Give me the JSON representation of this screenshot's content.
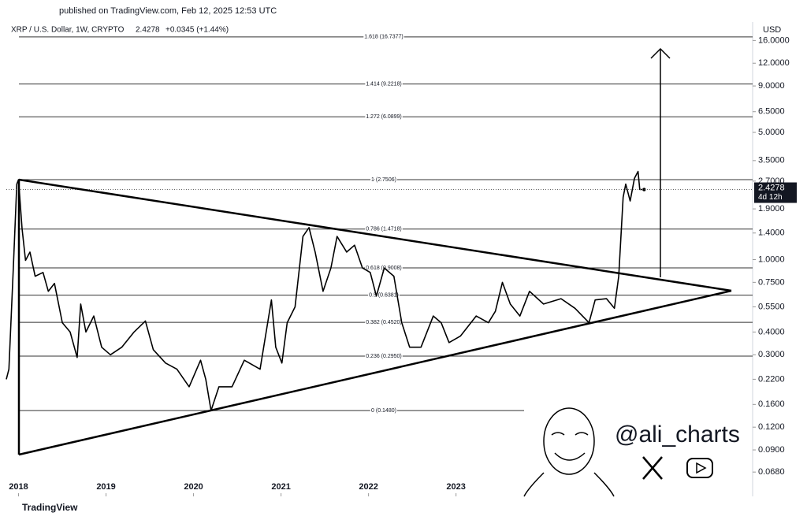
{
  "published": "published on TradingView.com, Feb 12, 2025 12:53 UTC",
  "footer": "TradingView",
  "watermark": "@ali_charts",
  "chart_data": {
    "type": "line",
    "symbol": "XRP / U.S. Dollar, 1W, CRYPTO",
    "last_price": "2.4278",
    "change": "+0.0345 (+1.44%)",
    "countdown": "4d 12h",
    "y_axis_label": "USD",
    "color": "#000000",
    "log_scale": true,
    "grid": false,
    "xlim": [
      2017.86,
      2026.39
    ],
    "xticks": [
      2018,
      2019,
      2020,
      2021,
      2022,
      2023
    ],
    "ylim": [
      0.05,
      20.2
    ],
    "yticks": [
      {
        "value": 0.068,
        "label": "0.0680"
      },
      {
        "value": 0.09,
        "label": "0.0900"
      },
      {
        "value": 0.12,
        "label": "0.1200"
      },
      {
        "value": 0.16,
        "label": "0.1600"
      },
      {
        "value": 0.22,
        "label": "0.2200"
      },
      {
        "value": 0.3,
        "label": "0.3000"
      },
      {
        "value": 0.4,
        "label": "0.4000"
      },
      {
        "value": 0.55,
        "label": "0.5500"
      },
      {
        "value": 0.75,
        "label": "0.7500"
      },
      {
        "value": 1,
        "label": "1.0000"
      },
      {
        "value": 1.4,
        "label": "1.4000"
      },
      {
        "value": 1.9,
        "label": "1.9000"
      },
      {
        "value": 2.7,
        "label": "2.7000"
      },
      {
        "value": 3.5,
        "label": "3.5000"
      },
      {
        "value": 5,
        "label": "5.0000"
      },
      {
        "value": 6.5,
        "label": "6.5000"
      },
      {
        "value": 9,
        "label": "9.0000"
      },
      {
        "value": 12,
        "label": "12.0000"
      },
      {
        "value": 16,
        "label": "16.0000"
      }
    ],
    "fib_levels": [
      {
        "label": "1.618 (16.7377)",
        "value": 16.7377
      },
      {
        "label": "1.414 (9.2218)",
        "value": 9.2218
      },
      {
        "label": "1.272 (6.0899)",
        "value": 6.0899
      },
      {
        "label": "1 (2.7506)",
        "value": 2.7506
      },
      {
        "label": "0.786 (1.4718)",
        "value": 1.4718
      },
      {
        "label": "0.618 (0.9008)",
        "value": 0.9008
      },
      {
        "label": "0.5 (0.6381)",
        "value": 0.6381
      },
      {
        "label": "0.382 (0.4520)",
        "value": 0.452
      },
      {
        "label": "0.236 (0.2950)",
        "value": 0.295
      },
      {
        "label": "0 (0.1480)",
        "value": 0.148
      }
    ],
    "x": [
      2017.86,
      2017.89,
      2017.94,
      2017.98,
      2018.0,
      2018.04,
      2018.08,
      2018.13,
      2018.19,
      2018.28,
      2018.34,
      2018.41,
      2018.5,
      2018.59,
      2018.67,
      2018.71,
      2018.77,
      2018.86,
      2018.95,
      2019.05,
      2019.18,
      2019.32,
      2019.45,
      2019.54,
      2019.68,
      2019.81,
      2019.95,
      2020.08,
      2020.14,
      2020.2,
      2020.29,
      2020.44,
      2020.58,
      2020.76,
      2020.89,
      2020.94,
      2021.01,
      2021.07,
      2021.16,
      2021.25,
      2021.32,
      2021.39,
      2021.48,
      2021.57,
      2021.64,
      2021.75,
      2021.84,
      2021.93,
      2022.02,
      2022.09,
      2022.18,
      2022.29,
      2022.38,
      2022.47,
      2022.6,
      2022.74,
      2022.83,
      2022.92,
      2023.05,
      2023.23,
      2023.37,
      2023.45,
      2023.53,
      2023.62,
      2023.73,
      2023.84,
      2024.0,
      2024.2,
      2024.36,
      2024.52,
      2024.59,
      2024.72,
      2024.81,
      2024.86,
      2024.91,
      2024.94,
      2024.99,
      2025.04,
      2025.08,
      2025.1,
      2025.15
    ],
    "values": [
      0.22,
      0.25,
      0.9,
      2.6,
      2.75,
      1.48,
      0.99,
      1.1,
      0.81,
      0.85,
      0.67,
      0.74,
      0.45,
      0.4,
      0.29,
      0.57,
      0.4,
      0.49,
      0.33,
      0.3,
      0.33,
      0.4,
      0.46,
      0.32,
      0.27,
      0.25,
      0.2,
      0.28,
      0.22,
      0.148,
      0.2,
      0.2,
      0.28,
      0.25,
      0.6,
      0.33,
      0.27,
      0.45,
      0.55,
      1.34,
      1.5,
      1.1,
      0.67,
      0.9,
      1.34,
      1.1,
      1.2,
      0.9,
      0.85,
      0.63,
      0.9,
      0.81,
      0.45,
      0.33,
      0.33,
      0.49,
      0.45,
      0.35,
      0.38,
      0.49,
      0.45,
      0.52,
      0.75,
      0.57,
      0.49,
      0.67,
      0.57,
      0.61,
      0.54,
      0.45,
      0.6,
      0.61,
      0.54,
      0.81,
      2.2,
      2.6,
      2.1,
      2.8,
      3.05,
      2.43,
      2.4278
    ]
  }
}
